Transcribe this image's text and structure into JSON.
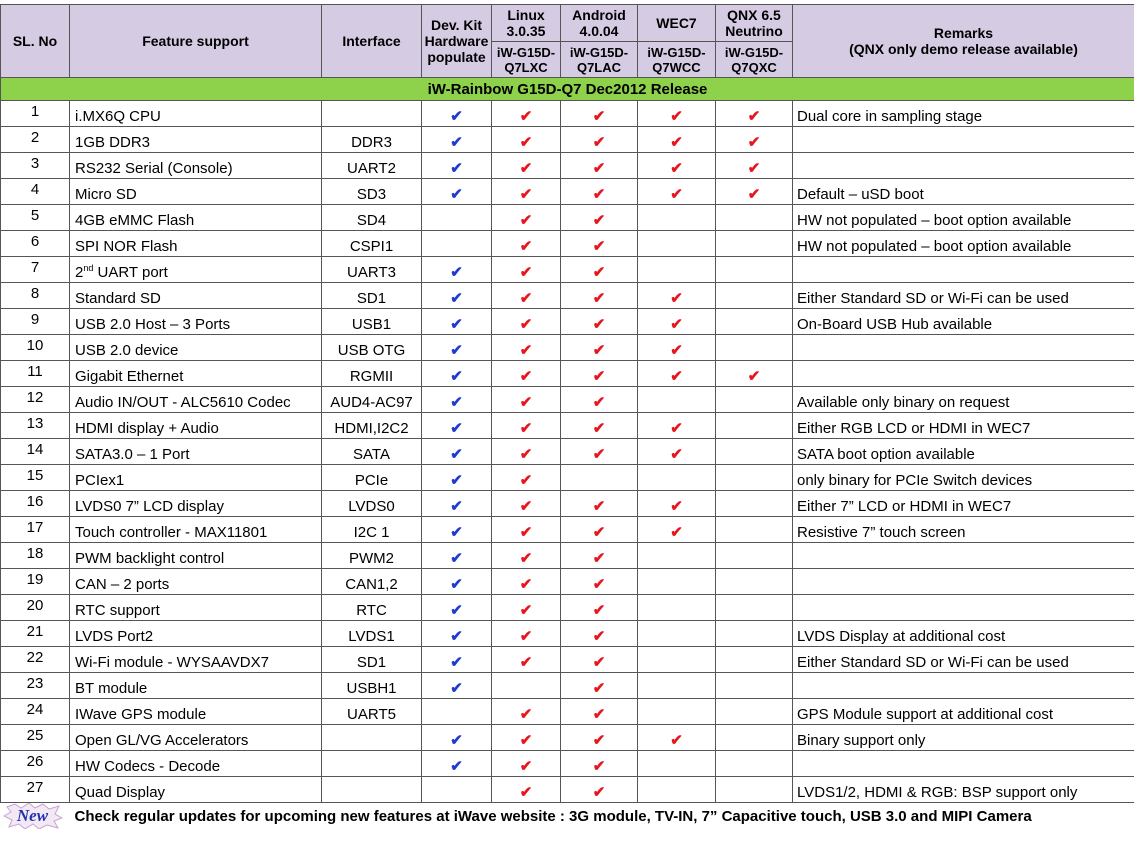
{
  "header": {
    "sl_no": "SL. No",
    "feature": "Feature support",
    "interface": "Interface",
    "devkit": [
      "Dev. Kit",
      "Hardware",
      "populate"
    ],
    "linux": [
      "Linux",
      "3.0.35"
    ],
    "android": [
      "Android",
      "4.0.04"
    ],
    "wec7": "WEC7",
    "qnx": [
      "QNX 6.5",
      "Neutrino"
    ],
    "remarks": [
      "Remarks",
      "(QNX only demo release available)"
    ],
    "sub": {
      "linux": [
        "iW-G15D-",
        "Q7LXC"
      ],
      "android": [
        "iW-G15D-",
        "Q7LAC"
      ],
      "wec7": [
        "iW-G15D-",
        "Q7WCC"
      ],
      "qnx": [
        "iW-G15D-",
        "Q7QXC"
      ]
    }
  },
  "release_band": "iW-Rainbow G15D-Q7 Dec2012  Release",
  "check_glyph": "✔",
  "colors": {
    "header_bg": "#d5cce4",
    "band_bg": "#8ed14b",
    "devkit_check": "#1f3ccf",
    "os_check": "#e8141e"
  },
  "rows": [
    {
      "no": "1",
      "feature": "i.MX6Q CPU",
      "interface": "",
      "devkit": true,
      "linux": true,
      "android": true,
      "wec7": true,
      "qnx": true,
      "remarks": "Dual  core in sampling stage"
    },
    {
      "no": "2",
      "feature": "1GB DDR3",
      "interface": "DDR3",
      "devkit": true,
      "linux": true,
      "android": true,
      "wec7": true,
      "qnx": true,
      "remarks": ""
    },
    {
      "no": "3",
      "feature": "RS232 Serial (Console)",
      "interface": "UART2",
      "devkit": true,
      "linux": true,
      "android": true,
      "wec7": true,
      "qnx": true,
      "remarks": ""
    },
    {
      "no": "4",
      "feature": "Micro SD",
      "interface": "SD3",
      "devkit": true,
      "linux": true,
      "android": true,
      "wec7": true,
      "qnx": true,
      "remarks": "Default – uSD boot"
    },
    {
      "no": "5",
      "feature": "4GB eMMC Flash",
      "interface": "SD4",
      "devkit": false,
      "linux": true,
      "android": true,
      "wec7": false,
      "qnx": false,
      "remarks": "HW not populated – boot option available"
    },
    {
      "no": "6",
      "feature": "SPI NOR Flash",
      "interface": "CSPI1",
      "devkit": false,
      "linux": true,
      "android": true,
      "wec7": false,
      "qnx": false,
      "remarks": "HW not populated – boot option available"
    },
    {
      "no": "7",
      "feature": "2nd UART port",
      "interface": "UART3",
      "devkit": true,
      "linux": true,
      "android": true,
      "wec7": false,
      "qnx": false,
      "remarks": ""
    },
    {
      "no": "8",
      "feature": "Standard SD",
      "interface": "SD1",
      "devkit": true,
      "linux": true,
      "android": true,
      "wec7": true,
      "qnx": false,
      "remarks": "Either Standard SD or Wi-Fi can be used"
    },
    {
      "no": "9",
      "feature": "USB 2.0 Host – 3 Ports",
      "interface": "USB1",
      "devkit": true,
      "linux": true,
      "android": true,
      "wec7": true,
      "qnx": false,
      "remarks": "On-Board USB Hub available"
    },
    {
      "no": "10",
      "feature": "USB 2.0 device",
      "interface": "USB OTG",
      "devkit": true,
      "linux": true,
      "android": true,
      "wec7": true,
      "qnx": false,
      "remarks": ""
    },
    {
      "no": "11",
      "feature": "Gigabit Ethernet",
      "interface": "RGMII",
      "devkit": true,
      "linux": true,
      "android": true,
      "wec7": true,
      "qnx": true,
      "remarks": ""
    },
    {
      "no": "12",
      "feature": "Audio IN/OUT  - ALC5610 Codec",
      "interface": "AUD4-AC97",
      "devkit": true,
      "linux": true,
      "android": true,
      "wec7": false,
      "qnx": false,
      "remarks": "Available only binary on request"
    },
    {
      "no": "13",
      "feature": "HDMI display + Audio",
      "interface": "HDMI,I2C2",
      "devkit": true,
      "linux": true,
      "android": true,
      "wec7": true,
      "qnx": false,
      "remarks": "Either RGB LCD or HDMI  in WEC7"
    },
    {
      "no": "14",
      "feature": "SATA3.0 – 1 Port",
      "interface": "SATA",
      "devkit": true,
      "linux": true,
      "android": true,
      "wec7": true,
      "qnx": false,
      "remarks": "SATA boot option available"
    },
    {
      "no": "15",
      "feature": "PCIex1",
      "interface": "PCIe",
      "devkit": true,
      "linux": true,
      "android": false,
      "wec7": false,
      "qnx": false,
      "remarks": "only binary for PCIe Switch devices"
    },
    {
      "no": "16",
      "feature": "LVDS0 7” LCD display",
      "interface": "LVDS0",
      "devkit": true,
      "linux": true,
      "android": true,
      "wec7": true,
      "qnx": false,
      "remarks": "Either 7” LCD or HDMI in WEC7"
    },
    {
      "no": "17",
      "feature": "Touch controller  - MAX11801",
      "interface": "I2C 1",
      "devkit": true,
      "linux": true,
      "android": true,
      "wec7": true,
      "qnx": false,
      "remarks": "Resistive 7” touch screen"
    },
    {
      "no": "18",
      "feature": "PWM backlight control",
      "interface": "PWM2",
      "devkit": true,
      "linux": true,
      "android": true,
      "wec7": false,
      "qnx": false,
      "remarks": ""
    },
    {
      "no": "19",
      "feature": "CAN – 2 ports",
      "interface": "CAN1,2",
      "devkit": true,
      "linux": true,
      "android": true,
      "wec7": false,
      "qnx": false,
      "remarks": ""
    },
    {
      "no": "20",
      "feature": "RTC  support",
      "interface": "RTC",
      "devkit": true,
      "linux": true,
      "android": true,
      "wec7": false,
      "qnx": false,
      "remarks": ""
    },
    {
      "no": "21",
      "feature": "LVDS Port2",
      "interface": "LVDS1",
      "devkit": true,
      "linux": true,
      "android": true,
      "wec7": false,
      "qnx": false,
      "remarks": "LVDS Display at additional cost"
    },
    {
      "no": "22",
      "feature": "Wi-Fi module  - WYSAAVDX7",
      "interface": "SD1",
      "devkit": true,
      "linux": true,
      "android": true,
      "wec7": false,
      "qnx": false,
      "remarks": " Either Standard SD or Wi-Fi can be used"
    },
    {
      "no": "23",
      "feature": "BT module",
      "interface": "USBH1",
      "devkit": true,
      "linux": false,
      "android": true,
      "wec7": false,
      "qnx": false,
      "remarks": ""
    },
    {
      "no": "24",
      "feature": "IWave  GPS module",
      "interface": "UART5",
      "devkit": false,
      "linux": true,
      "android": true,
      "wec7": false,
      "qnx": false,
      "remarks": "GPS Module support at additional cost"
    },
    {
      "no": "25",
      "feature": "Open GL/VG Accelerators",
      "interface": "",
      "devkit": true,
      "linux": true,
      "android": true,
      "wec7": true,
      "qnx": false,
      "remarks": "Binary support only"
    },
    {
      "no": "26",
      "feature": "HW Codecs - Decode",
      "interface": "",
      "devkit": true,
      "linux": true,
      "android": true,
      "wec7": false,
      "qnx": false,
      "remarks": ""
    },
    {
      "no": "27",
      "feature": "Quad Display",
      "interface": "",
      "devkit": false,
      "linux": true,
      "android": true,
      "wec7": false,
      "qnx": false,
      "remarks": "LVDS1/2, HDMI & RGB:  BSP support only"
    }
  ],
  "footer": {
    "badge": "New",
    "text": "Check regular updates for upcoming new features at iWave website : 3G module, TV-IN, 7” Capacitive touch, USB 3.0 and MIPI Camera"
  }
}
